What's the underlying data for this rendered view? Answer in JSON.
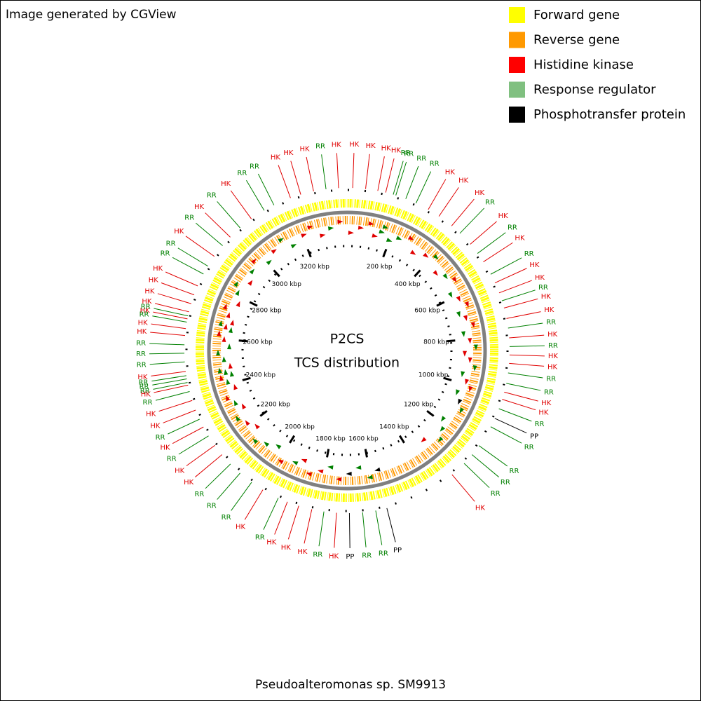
{
  "header": {
    "text": "Image generated by CGView"
  },
  "legend": [
    {
      "name": "Forward gene",
      "color": "#ffff00"
    },
    {
      "name": "Reverse gene",
      "color": "#ff9900"
    },
    {
      "name": "Histidine kinase",
      "color": "#ff0000"
    },
    {
      "name": "Response regulator",
      "color": "#80c080"
    },
    {
      "name": "Phosphotransfer protein",
      "color": "#000000"
    }
  ],
  "map": {
    "title_lines": [
      "P2CS",
      "TCS distribution"
    ],
    "position_lim": [
      0,
      3400
    ],
    "ticks": [
      {
        "value": 200,
        "label": "200 kbp"
      },
      {
        "value": 400,
        "label": "400 kbp"
      },
      {
        "value": 600,
        "label": "600 kbp"
      },
      {
        "value": 800,
        "label": "800 kbp"
      },
      {
        "value": 1000,
        "label": "1000 kbp"
      },
      {
        "value": 1200,
        "label": "1200 kbp"
      },
      {
        "value": 1400,
        "label": "1400 kbp"
      },
      {
        "value": 1600,
        "label": "1600 kbp"
      },
      {
        "value": 1800,
        "label": "1800 kbp"
      },
      {
        "value": 2000,
        "label": "2000 kbp"
      },
      {
        "value": 2200,
        "label": "2200 kbp"
      },
      {
        "value": 2400,
        "label": "2400 kbp"
      },
      {
        "value": 2600,
        "label": "2600 kbp"
      },
      {
        "value": 2800,
        "label": "2800 kbp"
      },
      {
        "value": 3000,
        "label": "3000 kbp"
      },
      {
        "value": 3200,
        "label": "3200 kbp"
      }
    ],
    "features": [
      {
        "label": "HK",
        "kbp": 19,
        "color": "#e00000"
      },
      {
        "label": "HK",
        "kbp": 62,
        "color": "#e00000"
      },
      {
        "label": "HK",
        "kbp": 103,
        "color": "#e00000"
      },
      {
        "label": "HK",
        "kbp": 130,
        "color": "#e00000"
      },
      {
        "label": "RR",
        "kbp": 156,
        "color": "#008000"
      },
      {
        "label": "RR",
        "kbp": 165,
        "color": "#008000"
      },
      {
        "label": "RR",
        "kbp": 200,
        "color": "#008000"
      },
      {
        "label": "RR",
        "kbp": 237,
        "color": "#008000"
      },
      {
        "label": "HK",
        "kbp": 283,
        "color": "#e00000"
      },
      {
        "label": "HK",
        "kbp": 325,
        "color": "#e00000"
      },
      {
        "label": "HK",
        "kbp": 378,
        "color": "#e00000"
      },
      {
        "label": "RR",
        "kbp": 415,
        "color": "#008000"
      },
      {
        "label": "HK",
        "kbp": 465,
        "color": "#e00000"
      },
      {
        "label": "RR",
        "kbp": 504,
        "color": "#008000"
      },
      {
        "label": "HK",
        "kbp": 538,
        "color": "#e00000"
      },
      {
        "label": "RR",
        "kbp": 586,
        "color": "#008000"
      },
      {
        "label": "HK",
        "kbp": 618,
        "color": "#e00000"
      },
      {
        "label": "HK",
        "kbp": 654,
        "color": "#e00000"
      },
      {
        "label": "RR",
        "kbp": 682,
        "color": "#008000"
      },
      {
        "label": "HK",
        "kbp": 707,
        "color": "#e00000"
      },
      {
        "label": "HK",
        "kbp": 743,
        "color": "#e00000"
      },
      {
        "label": "RR",
        "kbp": 775,
        "color": "#008000"
      },
      {
        "label": "HK",
        "kbp": 808,
        "color": "#e00000"
      },
      {
        "label": "RR",
        "kbp": 837,
        "color": "#008000"
      },
      {
        "label": "HK",
        "kbp": 865,
        "color": "#e00000"
      },
      {
        "label": "HK",
        "kbp": 893,
        "color": "#e00000"
      },
      {
        "label": "RR",
        "kbp": 925,
        "color": "#008000"
      },
      {
        "label": "RR",
        "kbp": 960,
        "color": "#008000"
      },
      {
        "label": "HK",
        "kbp": 990,
        "color": "#e00000"
      },
      {
        "label": "HK",
        "kbp": 1015,
        "color": "#e00000"
      },
      {
        "label": "RR",
        "kbp": 1048,
        "color": "#008000"
      },
      {
        "label": "PP",
        "kbp": 1083,
        "color": "#000000"
      },
      {
        "label": "RR",
        "kbp": 1114,
        "color": "#008000"
      },
      {
        "label": "RR",
        "kbp": 1188,
        "color": "#008000"
      },
      {
        "label": "RR",
        "kbp": 1226,
        "color": "#008000"
      },
      {
        "label": "RR",
        "kbp": 1265,
        "color": "#008000"
      },
      {
        "label": "HK",
        "kbp": 1320,
        "color": "#e00000"
      },
      {
        "label": "PP",
        "kbp": 1566,
        "color": "#000000"
      },
      {
        "label": "RR",
        "kbp": 1604,
        "color": "#008000"
      },
      {
        "label": "RR",
        "kbp": 1648,
        "color": "#008000"
      },
      {
        "label": "PP",
        "kbp": 1692,
        "color": "#000000"
      },
      {
        "label": "HK",
        "kbp": 1735,
        "color": "#e00000"
      },
      {
        "label": "RR",
        "kbp": 1777,
        "color": "#008000"
      },
      {
        "label": "HK",
        "kbp": 1818,
        "color": "#e00000"
      },
      {
        "label": "HK",
        "kbp": 1863,
        "color": "#e00000"
      },
      {
        "label": "HK",
        "kbp": 1903,
        "color": "#e00000"
      },
      {
        "label": "RR",
        "kbp": 1936,
        "color": "#008000"
      },
      {
        "label": "HK",
        "kbp": 1994,
        "color": "#e00000"
      },
      {
        "label": "RR",
        "kbp": 2039,
        "color": "#008000"
      },
      {
        "label": "RR",
        "kbp": 2088,
        "color": "#008000"
      },
      {
        "label": "RR",
        "kbp": 2132,
        "color": "#008000"
      },
      {
        "label": "HK",
        "kbp": 2174,
        "color": "#e00000"
      },
      {
        "label": "HK",
        "kbp": 2213,
        "color": "#e00000"
      },
      {
        "label": "RR",
        "kbp": 2251,
        "color": "#008000"
      },
      {
        "label": "HK",
        "kbp": 2285,
        "color": "#e00000"
      },
      {
        "label": "RR",
        "kbp": 2314,
        "color": "#008000"
      },
      {
        "label": "HK",
        "kbp": 2347,
        "color": "#e00000"
      },
      {
        "label": "HK",
        "kbp": 2381,
        "color": "#e00000"
      },
      {
        "label": "RR",
        "kbp": 2412,
        "color": "#008000"
      },
      {
        "label": "HK",
        "kbp": 2434,
        "color": "#e00000"
      },
      {
        "label": "RR",
        "kbp": 2443,
        "color": "#008000"
      },
      {
        "label": "RR",
        "kbp": 2455,
        "color": "#008000"
      },
      {
        "label": "RR",
        "kbp": 2466,
        "color": "#008000"
      },
      {
        "label": "HK",
        "kbp": 2480,
        "color": "#e00000"
      },
      {
        "label": "RR",
        "kbp": 2512,
        "color": "#008000"
      },
      {
        "label": "RR",
        "kbp": 2541,
        "color": "#008000"
      },
      {
        "label": "RR",
        "kbp": 2569,
        "color": "#008000"
      },
      {
        "label": "HK",
        "kbp": 2600,
        "color": "#e00000"
      },
      {
        "label": "HK",
        "kbp": 2623,
        "color": "#e00000"
      },
      {
        "label": "RR",
        "kbp": 2645,
        "color": "#008000"
      },
      {
        "label": "HK",
        "kbp": 2656,
        "color": "#e00000"
      },
      {
        "label": "RR",
        "kbp": 2666,
        "color": "#008000"
      },
      {
        "label": "HK",
        "kbp": 2680,
        "color": "#e00000"
      },
      {
        "label": "HK",
        "kbp": 2708,
        "color": "#e00000"
      },
      {
        "label": "HK",
        "kbp": 2739,
        "color": "#e00000"
      },
      {
        "label": "HK",
        "kbp": 2771,
        "color": "#e00000"
      },
      {
        "label": "RR",
        "kbp": 2815,
        "color": "#008000"
      },
      {
        "label": "RR",
        "kbp": 2845,
        "color": "#008000"
      },
      {
        "label": "HK",
        "kbp": 2884,
        "color": "#e00000"
      },
      {
        "label": "RR",
        "kbp": 2929,
        "color": "#008000"
      },
      {
        "label": "HK",
        "kbp": 2967,
        "color": "#e00000"
      },
      {
        "label": "RR",
        "kbp": 3012,
        "color": "#008000"
      },
      {
        "label": "HK",
        "kbp": 3060,
        "color": "#e00000"
      },
      {
        "label": "RR",
        "kbp": 3111,
        "color": "#008000"
      },
      {
        "label": "RR",
        "kbp": 3148,
        "color": "#008000"
      },
      {
        "label": "HK",
        "kbp": 3208,
        "color": "#e00000"
      },
      {
        "label": "HK",
        "kbp": 3244,
        "color": "#e00000"
      },
      {
        "label": "HK",
        "kbp": 3288,
        "color": "#e00000"
      },
      {
        "label": "RR",
        "kbp": 3330,
        "color": "#008000"
      },
      {
        "label": "HK",
        "kbp": 3372,
        "color": "#e00000"
      }
    ]
  },
  "footer": {
    "text": "Pseudoalteromonas sp. SM9913"
  }
}
